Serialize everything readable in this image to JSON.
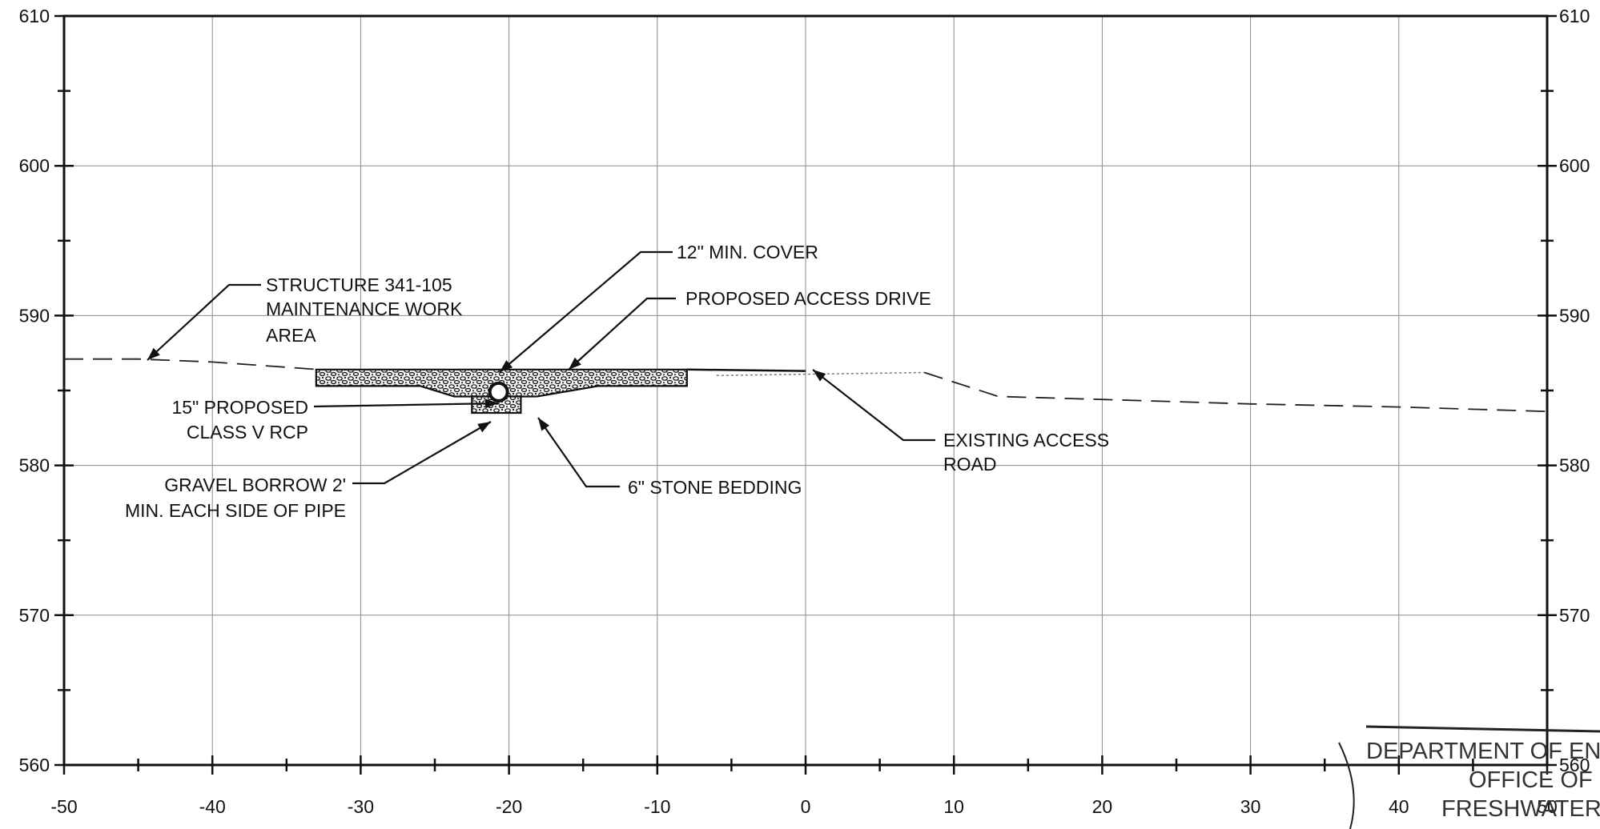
{
  "chart_data": {
    "type": "cross-section",
    "xlim": [
      -50,
      50
    ],
    "ylim": [
      560,
      610
    ],
    "x_ticks": [
      -50,
      -40,
      -30,
      -20,
      -10,
      0,
      10,
      20,
      30,
      40,
      50
    ],
    "y_ticks": [
      560,
      570,
      580,
      590,
      600,
      610
    ],
    "x_tick_labels": [
      "-50",
      "-40",
      "-30",
      "-20",
      "-10",
      "0",
      "10",
      "20",
      "30",
      "40",
      "50"
    ],
    "y_tick_labels": [
      "560",
      "570",
      "580",
      "590",
      "600",
      "610"
    ],
    "existing_ground": {
      "x": [
        -50,
        -45,
        -40,
        -30,
        -20,
        0,
        8,
        13,
        20,
        30,
        40,
        50
      ],
      "y": [
        587.1,
        587.1,
        586.9,
        586.2,
        586.0,
        586.3,
        586.2,
        584.6,
        584.4,
        584.1,
        583.9,
        583.6
      ]
    },
    "proposed_drive": {
      "x_start": -33,
      "x_end": -8,
      "top_elevation": 586.4,
      "bottom_elevation": 585.3,
      "trench_x": [
        -22.5,
        -19.2
      ],
      "trench_bottom_elevation": 583.5
    },
    "pipe": {
      "x": -20.7,
      "elevation": 584.9,
      "diameter_in": 15
    },
    "annotations": [
      {
        "id": "structure",
        "lines": [
          "STRUCTURE 341-105",
          "MAINTENANCE WORK",
          "AREA"
        ]
      },
      {
        "id": "cover",
        "lines": [
          "12\" MIN. COVER"
        ]
      },
      {
        "id": "drive",
        "lines": [
          "PROPOSED ACCESS DRIVE"
        ]
      },
      {
        "id": "pipe",
        "lines": [
          "15\" PROPOSED",
          "CLASS V RCP"
        ]
      },
      {
        "id": "gravel",
        "lines": [
          "GRAVEL BORROW 2'",
          "MIN. EACH SIDE OF PIPE"
        ]
      },
      {
        "id": "bedding",
        "lines": [
          "6\" STONE BEDDING"
        ]
      },
      {
        "id": "existing",
        "lines": [
          "EXISTING ACCESS",
          "ROAD"
        ]
      }
    ]
  },
  "stamp": {
    "lines": [
      "DEPARTMENT OF EN",
      "OFFICE OF",
      "FRESHWATER"
    ]
  }
}
